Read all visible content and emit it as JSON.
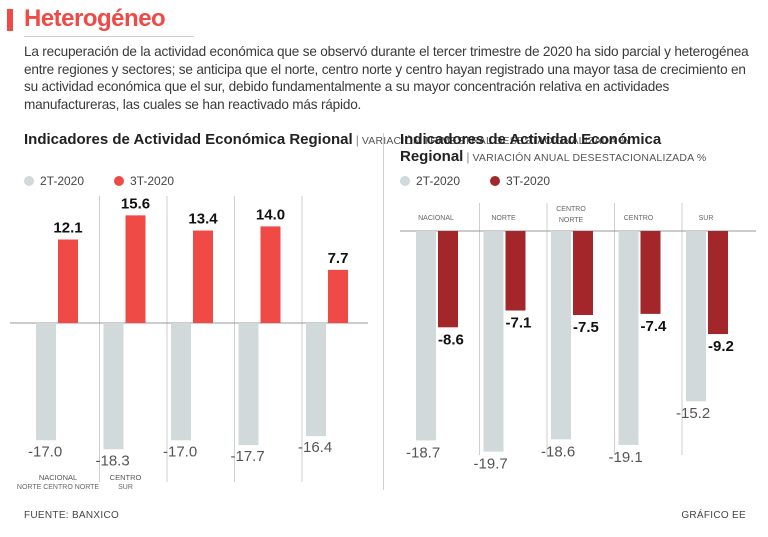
{
  "header": {
    "title": "Heterogéneo",
    "intro": "La recuperación de la actividad económica que se observó durante el tercer trimestre de 2020 ha sido parcial y heterogénea entre regiones y sectores; se anticipa que el norte, centro norte y centro hayan registrado una mayor tasa de crecimiento en su actividad económica que el sur, debido fundamentalmente a su mayor concentración relativa en actividades manufactureras, las cuales se han reactivado más rápido."
  },
  "footer": {
    "source": "FUENTE: BANXICO",
    "credit": "GRÁFICO EE"
  },
  "colors": {
    "accent": "#ef4a45",
    "q2": "#d1d9da",
    "q3_left": "#ef4a45",
    "q3_right": "#a3262a"
  },
  "chart_data": [
    {
      "type": "bar",
      "title": "Indicadores de Actividad Económica Regional",
      "subtitle": "VARIACIÓN TRIMESTRAL DESESTACIONALIZADA %",
      "categories": [
        "NACIONAL",
        "CENTRO",
        "",
        "",
        ""
      ],
      "category_notes": [
        "NORTE CENTRO NORTE",
        "SUR",
        "",
        "",
        ""
      ],
      "series": [
        {
          "name": "2T-2020",
          "values": [
            -17.0,
            -18.3,
            -17.0,
            -17.7,
            -16.4
          ]
        },
        {
          "name": "3T-2020",
          "values": [
            12.1,
            15.6,
            13.4,
            14.0,
            7.7
          ]
        }
      ],
      "legend": "top-left",
      "grid": false
    },
    {
      "type": "bar",
      "title": "Indicadores de Actividad Económica Regional",
      "subtitle": "VARIACIÓN ANUAL DESESTACIONALIZADA %",
      "categories": [
        "NACIONAL",
        "NORTE",
        "CENTRO NORTE",
        "CENTRO",
        "SUR"
      ],
      "series": [
        {
          "name": "2T-2020",
          "values": [
            -18.7,
            -19.7,
            -18.6,
            -19.1,
            -15.2
          ]
        },
        {
          "name": "3T-2020",
          "values": [
            -8.6,
            -7.1,
            -7.5,
            -7.4,
            -9.2
          ]
        }
      ],
      "legend": "top-left",
      "grid": false
    }
  ]
}
